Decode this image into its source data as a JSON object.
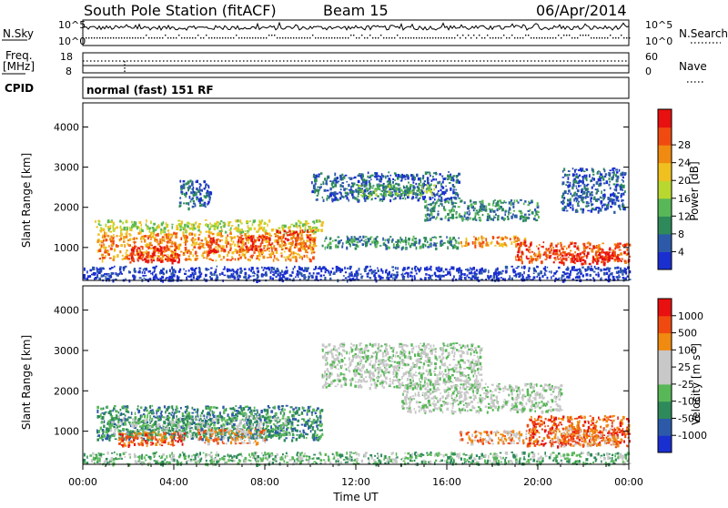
{
  "header": {
    "station": "South Pole Station (fitACF)",
    "beam": "Beam 15",
    "date": "06/Apr/2014"
  },
  "top_panels": {
    "nsky_label": "N.Sky",
    "nsearch_label": "N.Search",
    "nsky_ticks": [
      "10^5",
      "10^0"
    ],
    "nsearch_ticks": [
      "10^5",
      "10^0"
    ],
    "freq_label_1": "Freq.",
    "freq_label_2": "[MHz]",
    "freq_ticks": [
      "18",
      "8"
    ],
    "nave_label": "Nave",
    "nave_ticks": [
      "60",
      "0"
    ],
    "cpid_label": "CPID",
    "cpid_value": "normal (fast) 151 RF"
  },
  "colors": {
    "power_scale": [
      "#1a2fd0",
      "#2d5aa8",
      "#2e8a5a",
      "#58b858",
      "#b8d830",
      "#f0c020",
      "#f08a10",
      "#f04a10",
      "#e81010"
    ],
    "velocity_scale": [
      "#1a2fd0",
      "#2d5aa8",
      "#2e8a5a",
      "#58b858",
      "#c8c8c8",
      "#c8c8c8",
      "#f08a10",
      "#f04a10",
      "#e81010"
    ]
  },
  "chart_data": [
    {
      "type": "heatmap",
      "name": "power",
      "ylabel": "Slant Range [km]",
      "ylim": [
        180,
        4600
      ],
      "yticks": [
        "1000",
        "2000",
        "3000",
        "4000"
      ],
      "colorbar": {
        "label": "Power [dB]",
        "ticks": [
          "4",
          "8",
          "12",
          "16",
          "20",
          "24",
          "28"
        ]
      },
      "xlim_hours": [
        0,
        24
      ],
      "regions": [
        {
          "t": [
            0.5,
            10.5
          ],
          "r": [
            1400,
            1700
          ],
          "level": 4
        },
        {
          "t": [
            0.6,
            10.2
          ],
          "r": [
            700,
            1400
          ],
          "level": 6
        },
        {
          "t": [
            2.0,
            4.2
          ],
          "r": [
            650,
            1050
          ],
          "level": 8
        },
        {
          "t": [
            5.5,
            6.3
          ],
          "r": [
            900,
            1250
          ],
          "level": 8
        },
        {
          "t": [
            6.8,
            8.2
          ],
          "r": [
            950,
            1300
          ],
          "level": 8
        },
        {
          "t": [
            8.5,
            10.2
          ],
          "r": [
            1100,
            1450
          ],
          "level": 7
        },
        {
          "t": [
            10.5,
            16.5
          ],
          "r": [
            1000,
            1300
          ],
          "level": 2
        },
        {
          "t": [
            16.5,
            19.5
          ],
          "r": [
            1050,
            1300
          ],
          "level": 6
        },
        {
          "t": [
            19.0,
            24.0
          ],
          "r": [
            650,
            1150
          ],
          "level": 7
        },
        {
          "t": [
            21.0,
            23.5
          ],
          "r": [
            600,
            900
          ],
          "level": 8
        },
        {
          "t": [
            10.0,
            16.5
          ],
          "r": [
            2200,
            2900
          ],
          "level": 1
        },
        {
          "t": [
            12.0,
            15.5
          ],
          "r": [
            2300,
            2600
          ],
          "level": 3
        },
        {
          "t": [
            4.2,
            5.6
          ],
          "r": [
            2000,
            2700
          ],
          "level": 1
        },
        {
          "t": [
            15.0,
            20.0
          ],
          "r": [
            1700,
            2200
          ],
          "level": 2
        },
        {
          "t": [
            21.0,
            23.8
          ],
          "r": [
            1900,
            3000
          ],
          "level": 1
        },
        {
          "t": [
            0.0,
            24.0
          ],
          "r": [
            200,
            550
          ],
          "level": 0
        }
      ]
    },
    {
      "type": "heatmap",
      "name": "velocity",
      "ylabel": "Slant Range [km]",
      "xlabel": "Time UT",
      "ylim": [
        180,
        4600
      ],
      "yticks": [
        "1000",
        "2000",
        "3000",
        "4000"
      ],
      "xticks": [
        "00:00",
        "04:00",
        "08:00",
        "12:00",
        "16:00",
        "20:00",
        "00:00"
      ],
      "colorbar": {
        "label": "Velocity [m s^-1]",
        "ticks": [
          "1000",
          "500",
          "100",
          "25",
          "-25",
          "-100",
          "-500",
          "-1000"
        ]
      },
      "xlim_hours": [
        0,
        24
      ],
      "regions": [
        {
          "t": [
            0.6,
            10.5
          ],
          "r": [
            800,
            1650
          ],
          "level": 2
        },
        {
          "t": [
            1.0,
            9.0
          ],
          "r": [
            900,
            1400
          ],
          "level": 3
        },
        {
          "t": [
            5.0,
            8.0
          ],
          "r": [
            700,
            1100
          ],
          "level": 6
        },
        {
          "t": [
            1.5,
            4.5
          ],
          "r": [
            650,
            1000
          ],
          "level": 7
        },
        {
          "t": [
            10.5,
            17.5
          ],
          "r": [
            2100,
            3200
          ],
          "level": 4
        },
        {
          "t": [
            14.0,
            21.0
          ],
          "r": [
            1500,
            2200
          ],
          "level": 4
        },
        {
          "t": [
            16.5,
            20.0
          ],
          "r": [
            700,
            1050
          ],
          "level": 6
        },
        {
          "t": [
            19.5,
            24.0
          ],
          "r": [
            650,
            1400
          ],
          "level": 7
        },
        {
          "t": [
            20.5,
            23.5
          ],
          "r": [
            650,
            1100
          ],
          "level": 6
        },
        {
          "t": [
            0.0,
            24.0
          ],
          "r": [
            200,
            500
          ],
          "level": 3
        }
      ]
    }
  ]
}
